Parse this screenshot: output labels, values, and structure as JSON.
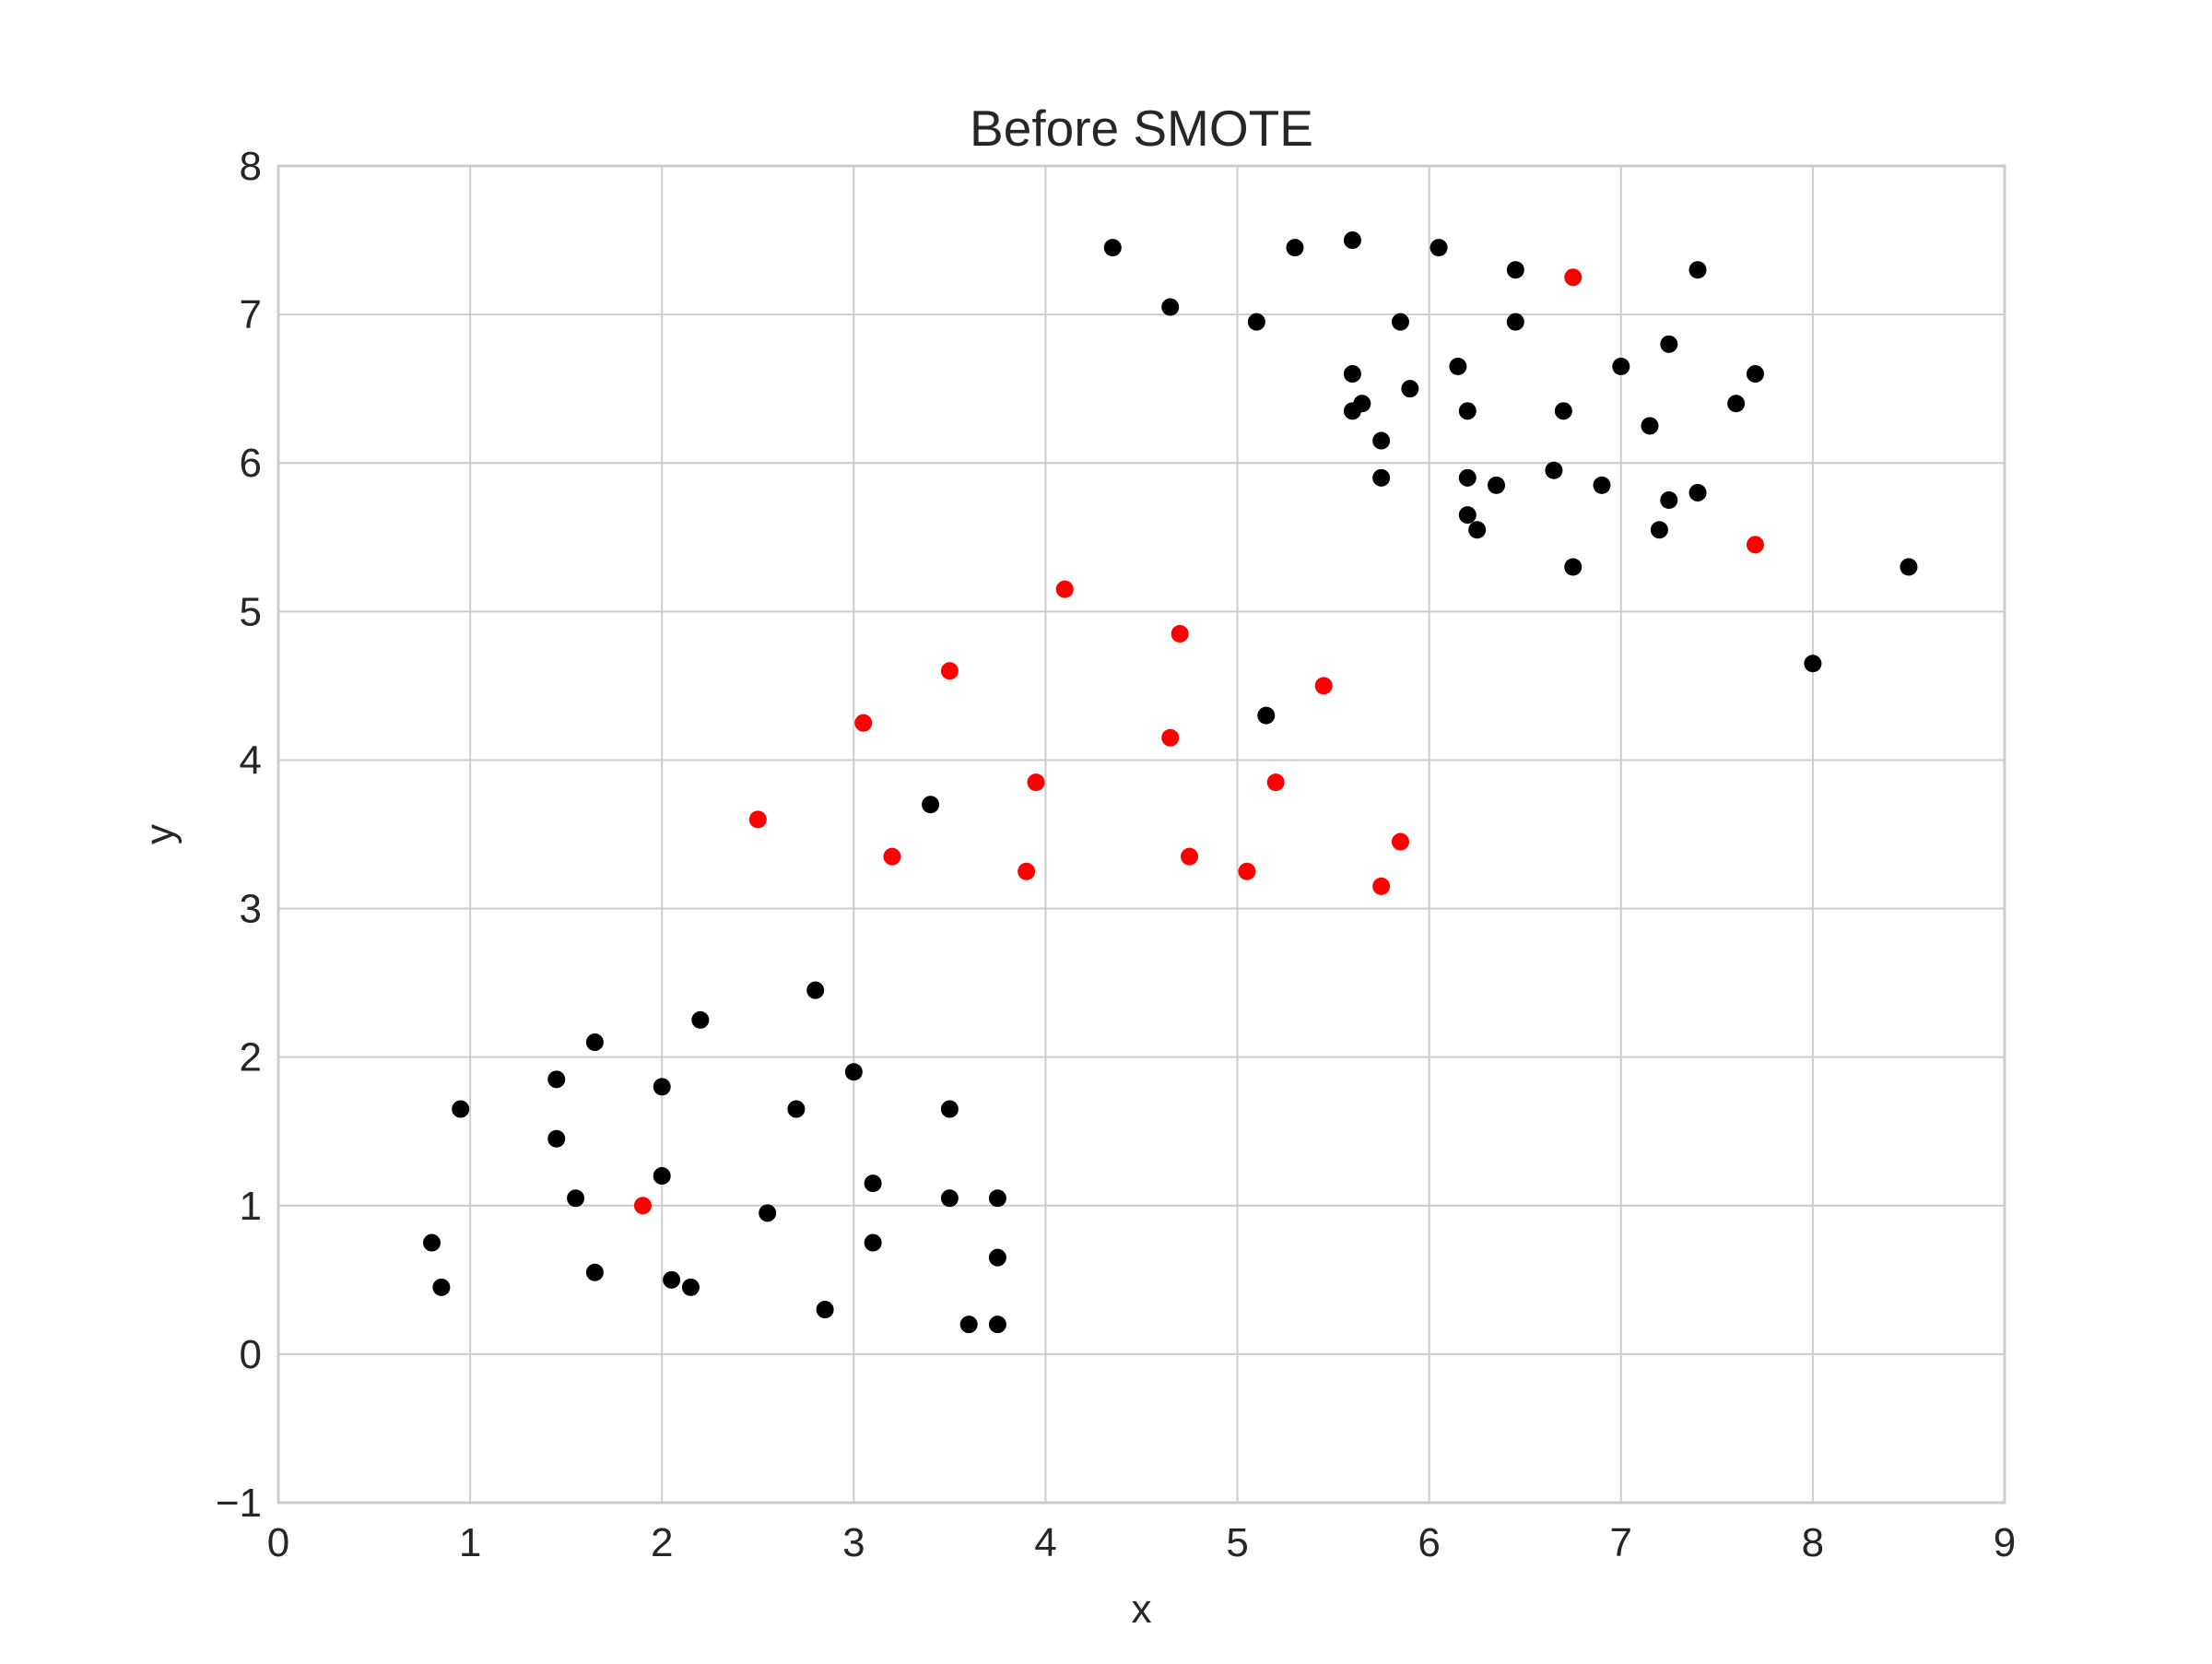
{
  "chart_data": {
    "type": "scatter",
    "title": "Before SMOTE",
    "xlabel": "x",
    "ylabel": "y",
    "xlim": [
      0,
      9
    ],
    "ylim": [
      -1,
      8
    ],
    "xticks": [
      "0",
      "1",
      "2",
      "3",
      "4",
      "5",
      "6",
      "7",
      "8",
      "9"
    ],
    "yticks": [
      "−1",
      "0",
      "1",
      "2",
      "3",
      "4",
      "5",
      "6",
      "7",
      "8"
    ],
    "grid": true,
    "legend": "none",
    "series": [
      {
        "color": "#000000",
        "points": [
          [
            0.8,
            0.75
          ],
          [
            0.85,
            0.45
          ],
          [
            0.95,
            1.65
          ],
          [
            1.45,
            1.85
          ],
          [
            1.45,
            1.45
          ],
          [
            1.55,
            1.05
          ],
          [
            1.65,
            2.1
          ],
          [
            1.65,
            0.55
          ],
          [
            2.0,
            1.8
          ],
          [
            2.0,
            1.2
          ],
          [
            2.05,
            0.5
          ],
          [
            2.15,
            0.45
          ],
          [
            2.2,
            2.25
          ],
          [
            2.55,
            0.95
          ],
          [
            2.7,
            1.65
          ],
          [
            2.8,
            2.45
          ],
          [
            2.85,
            0.3
          ],
          [
            3.0,
            1.9
          ],
          [
            3.1,
            1.15
          ],
          [
            3.1,
            0.75
          ],
          [
            3.4,
            3.7
          ],
          [
            3.5,
            1.65
          ],
          [
            3.5,
            1.05
          ],
          [
            3.6,
            0.2
          ],
          [
            3.75,
            1.05
          ],
          [
            3.75,
            0.65
          ],
          [
            3.75,
            0.2
          ],
          [
            4.35,
            7.45
          ],
          [
            4.65,
            7.05
          ],
          [
            5.1,
            6.95
          ],
          [
            5.15,
            4.3
          ],
          [
            5.3,
            7.45
          ],
          [
            5.6,
            7.5
          ],
          [
            5.6,
            6.6
          ],
          [
            5.6,
            6.35
          ],
          [
            5.65,
            6.4
          ],
          [
            5.75,
            6.15
          ],
          [
            5.75,
            5.9
          ],
          [
            5.85,
            6.95
          ],
          [
            5.9,
            6.5
          ],
          [
            6.05,
            7.45
          ],
          [
            6.15,
            6.65
          ],
          [
            6.2,
            6.35
          ],
          [
            6.2,
            5.9
          ],
          [
            6.2,
            5.65
          ],
          [
            6.25,
            5.55
          ],
          [
            6.35,
            5.85
          ],
          [
            6.45,
            7.3
          ],
          [
            6.45,
            6.95
          ],
          [
            6.65,
            5.95
          ],
          [
            6.7,
            6.35
          ],
          [
            6.75,
            5.3
          ],
          [
            6.9,
            5.85
          ],
          [
            7.0,
            6.65
          ],
          [
            7.15,
            6.25
          ],
          [
            7.2,
            5.55
          ],
          [
            7.25,
            6.8
          ],
          [
            7.25,
            5.75
          ],
          [
            7.4,
            7.3
          ],
          [
            7.4,
            5.8
          ],
          [
            7.6,
            6.4
          ],
          [
            7.7,
            6.6
          ],
          [
            8.0,
            4.65
          ],
          [
            8.5,
            5.3
          ]
        ]
      },
      {
        "color": "#ff0000",
        "points": [
          [
            1.9,
            1.0
          ],
          [
            2.5,
            3.6
          ],
          [
            3.05,
            4.25
          ],
          [
            3.2,
            3.35
          ],
          [
            3.5,
            4.6
          ],
          [
            3.9,
            3.25
          ],
          [
            3.95,
            3.85
          ],
          [
            4.1,
            5.15
          ],
          [
            4.65,
            4.15
          ],
          [
            4.7,
            4.85
          ],
          [
            4.75,
            3.35
          ],
          [
            5.05,
            3.25
          ],
          [
            5.2,
            3.85
          ],
          [
            5.45,
            4.5
          ],
          [
            5.75,
            3.15
          ],
          [
            5.85,
            3.45
          ],
          [
            6.75,
            7.25
          ],
          [
            7.7,
            5.45
          ]
        ]
      }
    ]
  }
}
